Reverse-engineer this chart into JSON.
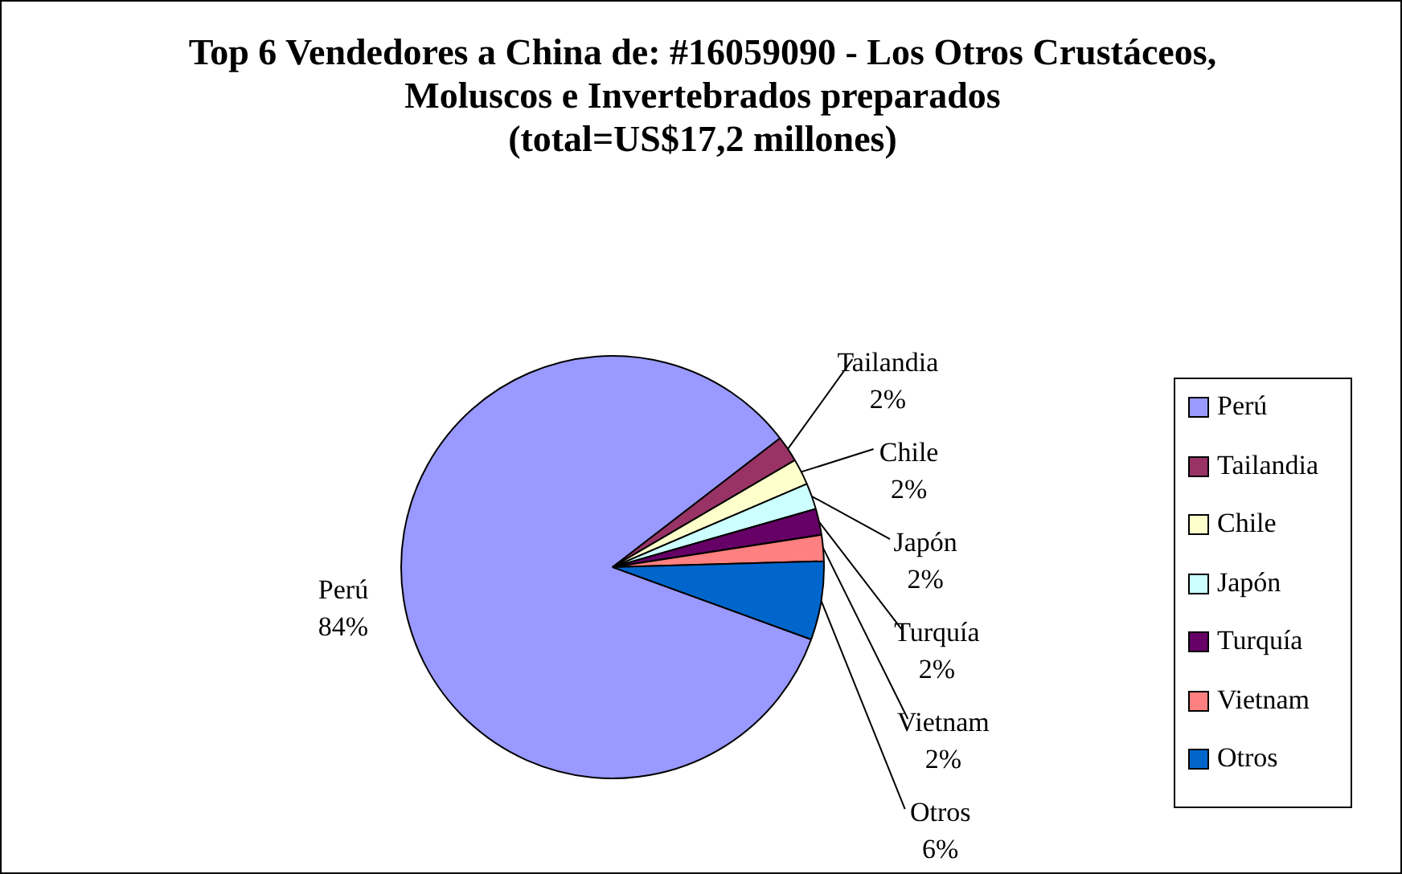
{
  "chart_data": {
    "type": "pie",
    "title": "Top 6 Vendedores a China de: #16059090 - Los Otros Crustáceos,\nMoluscos e Invertebrados preparados\n(total=US$17,2 millones)",
    "categories": [
      "Perú",
      "Tailandia",
      "Chile",
      "Japón",
      "Turquía",
      "Vietnam",
      "Otros"
    ],
    "values": [
      84,
      2,
      2,
      2,
      2,
      2,
      6
    ],
    "colors": [
      "#9999ff",
      "#993366",
      "#ffffcc",
      "#ccffff",
      "#660066",
      "#ff8080",
      "#0066cc"
    ],
    "value_labels": [
      "84%",
      "2%",
      "2%",
      "2%",
      "2%",
      "2%",
      "6%"
    ],
    "legend": "right"
  }
}
